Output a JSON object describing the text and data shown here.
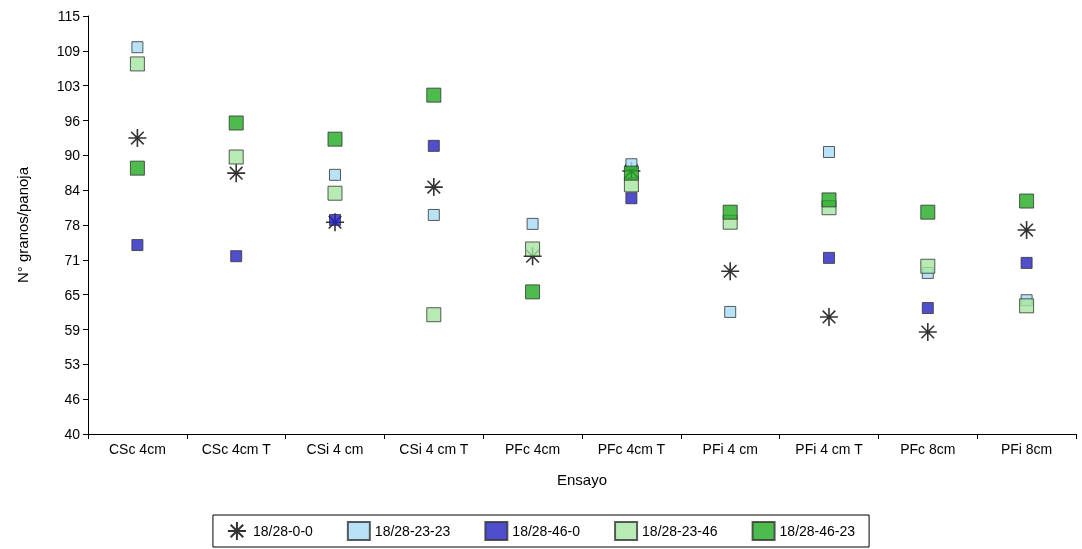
{
  "chart_data": {
    "type": "scatter",
    "xlabel": "Ensayo",
    "ylabel": "N° granos/panoja",
    "categories": [
      "CSc 4cm",
      "CSc 4cm T",
      "CSi 4 cm",
      "CSi 4 cm T",
      "PFc 4cm",
      "PFc 4cm T",
      "PFi 4 cm",
      "PFi 4 cm T",
      "PFc 8cm",
      "PFi 8cm"
    ],
    "ylim": [
      40,
      115
    ],
    "yticks": [
      40,
      {
        "value": 46.25,
        "label": "46"
      },
      {
        "value": 52.5,
        "label": "53"
      },
      {
        "value": 58.75,
        "label": "59"
      },
      {
        "value": 65,
        "label": "65"
      },
      {
        "value": 71.25,
        "label": "71"
      },
      {
        "value": 77.5,
        "label": "78"
      },
      {
        "value": 83.75,
        "label": "84"
      },
      {
        "value": 90,
        "label": "90"
      },
      {
        "value": 96.25,
        "label": "96"
      },
      {
        "value": 102.5,
        "label": "103"
      },
      {
        "value": 108.75,
        "label": "109"
      },
      115
    ],
    "grid": false,
    "legend": "bottom",
    "series": [
      {
        "name": "18/28-0-0",
        "color": "#000000",
        "marker": "cross",
        "values": [
          93.1,
          86.8,
          78.0,
          84.3,
          71.9,
          87.2,
          69.2,
          61.0,
          58.3,
          76.6
        ]
      },
      {
        "name": "18/28-23-23",
        "color": "#a6dcf5",
        "marker": "square",
        "values": [
          109.4,
          null,
          86.5,
          79.3,
          77.7,
          88.4,
          61.9,
          90.6,
          68.9,
          64.0
        ]
      },
      {
        "name": "18/28-46-0",
        "color": "#2323c0",
        "marker": "square",
        "values": [
          73.9,
          71.9,
          78.4,
          91.7,
          null,
          82.3,
          null,
          71.6,
          62.6,
          70.7
        ]
      },
      {
        "name": "18/28-23-46",
        "color": "#a6e6a0",
        "marker": "square",
        "values": [
          106.4,
          89.7,
          83.2,
          61.4,
          73.2,
          84.7,
          78.0,
          80.6,
          70.1,
          63.0
        ]
      },
      {
        "name": "18/28-46-23",
        "color": "#22aa22",
        "marker": "square",
        "values": [
          87.7,
          95.8,
          92.9,
          100.8,
          65.5,
          86.8,
          79.8,
          82.0,
          79.8,
          81.8
        ]
      }
    ]
  }
}
